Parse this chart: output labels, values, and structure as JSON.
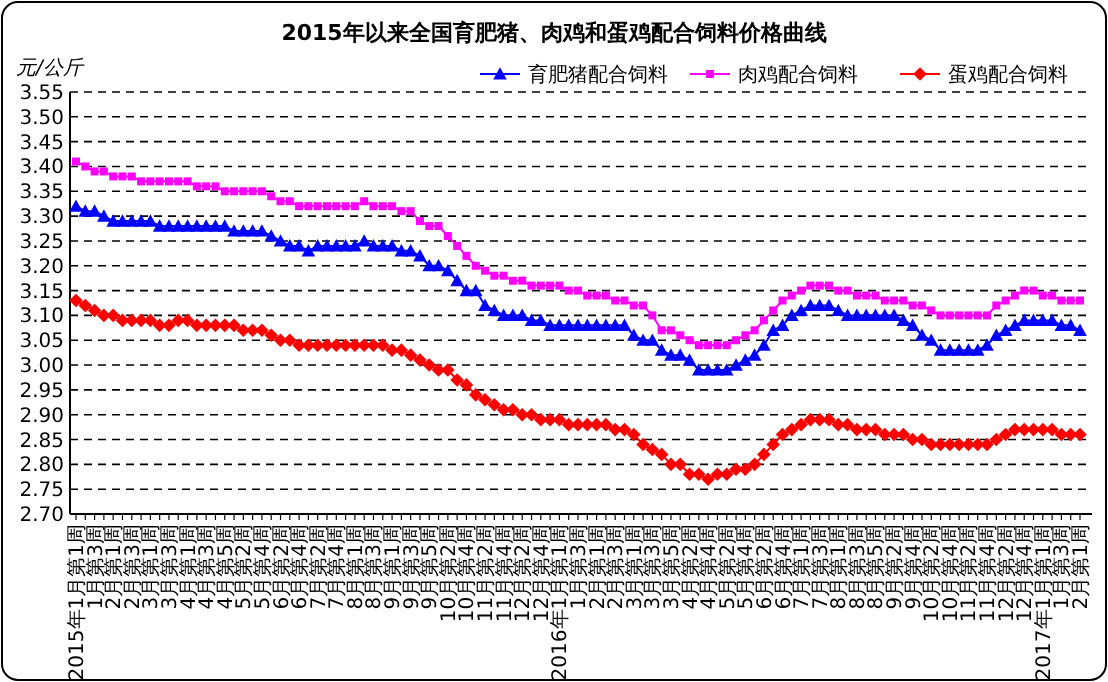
{
  "chart_data": {
    "type": "line",
    "title": "2015年以来全国育肥猪、肉鸡和蛋鸡配合饲料价格曲线",
    "ylabel": "元/公斤",
    "categories": [
      "2015年1月第1周",
      null,
      "1月第3周",
      null,
      "2月第1周",
      null,
      "2月第3周",
      null,
      "3月第1周",
      null,
      "3月第3周",
      null,
      "4月第1周",
      null,
      "4月第3周",
      null,
      "4月第5周",
      null,
      "5月第2周",
      null,
      "5月第4周",
      null,
      "6月第2周",
      null,
      "6月第4周",
      null,
      "7月第2周",
      null,
      "7月第4周",
      null,
      "8月第1周",
      null,
      "8月第3周",
      null,
      "9月第1周",
      null,
      "9月第3周",
      null,
      "9月第5周",
      null,
      "10月第2周",
      null,
      "10月第4周",
      null,
      "11月第2周",
      null,
      "11月第4周",
      null,
      "12月第2周",
      null,
      "12月第4周",
      null,
      "2016年1月第1周",
      null,
      "1月第3周",
      null,
      "2月第1周",
      null,
      "2月第3周",
      null,
      "3月第1周",
      null,
      "3月第3周",
      null,
      "3月第5周",
      null,
      "4月第2周",
      null,
      "4月第4周",
      null,
      "5月第2周",
      null,
      "5月第4周",
      null,
      "6月第2周",
      null,
      "6月第4周",
      null,
      "7月第1周",
      null,
      "7月第3周",
      null,
      "8月第1周",
      null,
      "8月第3周",
      null,
      "8月第5周",
      null,
      "9月第2周",
      null,
      "9月第4周",
      null,
      "10月第2周",
      null,
      "10月第4周",
      null,
      "11月第2周",
      null,
      "11月第4周",
      null,
      "12月第2周",
      null,
      "12月第4周",
      null,
      "2017年1月第1周",
      null,
      "1月第3周",
      null,
      "2月第1周"
    ],
    "series": [
      {
        "name": "育肥猪配合饲料",
        "color": "#0000ff",
        "marker": "triangle",
        "values": [
          3.32,
          3.31,
          3.31,
          3.3,
          3.29,
          3.29,
          3.29,
          3.29,
          3.29,
          3.28,
          3.28,
          3.28,
          3.28,
          3.28,
          3.28,
          3.28,
          3.28,
          3.27,
          3.27,
          3.27,
          3.27,
          3.26,
          3.25,
          3.24,
          3.24,
          3.23,
          3.24,
          3.24,
          3.24,
          3.24,
          3.24,
          3.25,
          3.24,
          3.24,
          3.24,
          3.23,
          3.23,
          3.22,
          3.2,
          3.2,
          3.19,
          3.17,
          3.15,
          3.15,
          3.12,
          3.11,
          3.1,
          3.1,
          3.1,
          3.09,
          3.09,
          3.08,
          3.08,
          3.08,
          3.08,
          3.08,
          3.08,
          3.08,
          3.08,
          3.08,
          3.06,
          3.05,
          3.05,
          3.03,
          3.02,
          3.02,
          3.01,
          2.99,
          2.99,
          2.99,
          2.99,
          3.0,
          3.01,
          3.02,
          3.04,
          3.07,
          3.08,
          3.1,
          3.11,
          3.12,
          3.12,
          3.12,
          3.11,
          3.1,
          3.1,
          3.1,
          3.1,
          3.1,
          3.1,
          3.09,
          3.08,
          3.06,
          3.05,
          3.03,
          3.03,
          3.03,
          3.03,
          3.03,
          3.04,
          3.06,
          3.07,
          3.08,
          3.09,
          3.09,
          3.09,
          3.09,
          3.08,
          3.08,
          3.07
        ]
      },
      {
        "name": "肉鸡配合饲料",
        "color": "#ff00ff",
        "marker": "square",
        "values": [
          3.41,
          3.4,
          3.39,
          3.39,
          3.38,
          3.38,
          3.38,
          3.37,
          3.37,
          3.37,
          3.37,
          3.37,
          3.37,
          3.36,
          3.36,
          3.36,
          3.35,
          3.35,
          3.35,
          3.35,
          3.35,
          3.34,
          3.33,
          3.33,
          3.32,
          3.32,
          3.32,
          3.32,
          3.32,
          3.32,
          3.32,
          3.33,
          3.32,
          3.32,
          3.32,
          3.31,
          3.31,
          3.29,
          3.28,
          3.28,
          3.26,
          3.24,
          3.22,
          3.2,
          3.19,
          3.18,
          3.18,
          3.17,
          3.17,
          3.16,
          3.16,
          3.16,
          3.16,
          3.15,
          3.15,
          3.14,
          3.14,
          3.14,
          3.13,
          3.13,
          3.12,
          3.12,
          3.1,
          3.07,
          3.07,
          3.06,
          3.05,
          3.04,
          3.04,
          3.04,
          3.04,
          3.05,
          3.06,
          3.07,
          3.09,
          3.11,
          3.13,
          3.14,
          3.15,
          3.16,
          3.16,
          3.16,
          3.15,
          3.15,
          3.14,
          3.14,
          3.14,
          3.13,
          3.13,
          3.13,
          3.12,
          3.12,
          3.11,
          3.1,
          3.1,
          3.1,
          3.1,
          3.1,
          3.1,
          3.12,
          3.13,
          3.14,
          3.15,
          3.15,
          3.14,
          3.14,
          3.13,
          3.13,
          3.13
        ]
      },
      {
        "name": "蛋鸡配合饲料",
        "color": "#ff0000",
        "marker": "diamond",
        "values": [
          3.13,
          3.12,
          3.11,
          3.1,
          3.1,
          3.09,
          3.09,
          3.09,
          3.09,
          3.08,
          3.08,
          3.09,
          3.09,
          3.08,
          3.08,
          3.08,
          3.08,
          3.08,
          3.07,
          3.07,
          3.07,
          3.06,
          3.05,
          3.05,
          3.04,
          3.04,
          3.04,
          3.04,
          3.04,
          3.04,
          3.04,
          3.04,
          3.04,
          3.04,
          3.03,
          3.03,
          3.02,
          3.01,
          3.0,
          2.99,
          2.99,
          2.97,
          2.96,
          2.94,
          2.93,
          2.92,
          2.91,
          2.91,
          2.9,
          2.9,
          2.89,
          2.89,
          2.89,
          2.88,
          2.88,
          2.88,
          2.88,
          2.88,
          2.87,
          2.87,
          2.86,
          2.84,
          2.83,
          2.82,
          2.8,
          2.8,
          2.78,
          2.78,
          2.77,
          2.78,
          2.78,
          2.79,
          2.79,
          2.8,
          2.82,
          2.84,
          2.86,
          2.87,
          2.88,
          2.89,
          2.89,
          2.89,
          2.88,
          2.88,
          2.87,
          2.87,
          2.87,
          2.86,
          2.86,
          2.86,
          2.85,
          2.85,
          2.84,
          2.84,
          2.84,
          2.84,
          2.84,
          2.84,
          2.84,
          2.85,
          2.86,
          2.87,
          2.87,
          2.87,
          2.87,
          2.87,
          2.86,
          2.86,
          2.86
        ]
      }
    ],
    "ylim": [
      2.7,
      3.55
    ],
    "yticks": [
      {
        "value": 2.7,
        "label": "2.70"
      },
      {
        "value": 2.75,
        "label": "2.75"
      },
      {
        "value": 2.8,
        "label": "2.80"
      },
      {
        "value": 2.85,
        "label": "2.85"
      },
      {
        "value": 2.9,
        "label": "2.90"
      },
      {
        "value": 2.95,
        "label": "2.95"
      },
      {
        "value": 3.0,
        "label": "3.00"
      },
      {
        "value": 3.05,
        "label": "3.05"
      },
      {
        "value": 3.1,
        "label": "3.10"
      },
      {
        "value": 3.15,
        "label": "3.15"
      },
      {
        "value": 3.2,
        "label": "3.20"
      },
      {
        "value": 3.25,
        "label": "3.25"
      },
      {
        "value": 3.3,
        "label": "3.30"
      },
      {
        "value": 3.35,
        "label": "3.35"
      },
      {
        "value": 3.4,
        "label": "3.40"
      },
      {
        "value": 3.45,
        "label": "3.45"
      },
      {
        "value": 3.5,
        "label": "3.50"
      },
      {
        "value": 3.55,
        "label": "3.55"
      }
    ],
    "grid": "y",
    "legend": "top right",
    "line_style": "solid"
  }
}
